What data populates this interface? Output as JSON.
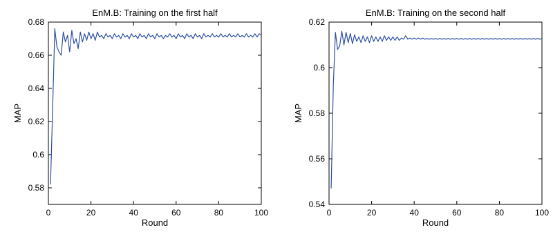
{
  "colors": {
    "series": "#2e4fa2",
    "axes": "#000000",
    "background": "#ffffff"
  },
  "chart_data": [
    {
      "type": "line",
      "title": "EnM.B: Training on the first half",
      "xlabel": "Round",
      "ylabel": "MAP",
      "xlim": [
        0,
        100
      ],
      "ylim": [
        0.57,
        0.68
      ],
      "xticks": [
        0,
        20,
        40,
        60,
        80,
        100
      ],
      "xtick_labels": [
        "0",
        "20",
        "40",
        "60",
        "80",
        "100"
      ],
      "yticks": [
        0.58,
        0.6,
        0.62,
        0.64,
        0.66,
        0.68
      ],
      "ytick_labels": [
        "0.58",
        "0.6",
        "0.62",
        "0.64",
        "0.66",
        "0.68"
      ],
      "grid": false,
      "series": [
        {
          "x": [
            1,
            2,
            3,
            4,
            5,
            6,
            7,
            8,
            9,
            10,
            11,
            12,
            13,
            14,
            15,
            16,
            17,
            18,
            19,
            20,
            21,
            22,
            23,
            24,
            25,
            26,
            27,
            28,
            29,
            30,
            31,
            32,
            33,
            34,
            35,
            36,
            37,
            38,
            39,
            40,
            41,
            42,
            43,
            44,
            45,
            46,
            47,
            48,
            49,
            50,
            51,
            52,
            53,
            54,
            55,
            56,
            57,
            58,
            59,
            60,
            61,
            62,
            63,
            64,
            65,
            66,
            67,
            68,
            69,
            70,
            71,
            72,
            73,
            74,
            75,
            76,
            77,
            78,
            79,
            80,
            81,
            82,
            83,
            84,
            85,
            86,
            87,
            88,
            89,
            90,
            91,
            92,
            93,
            94,
            95,
            96,
            97,
            98,
            99,
            100
          ],
          "y": [
            0.582,
            0.628,
            0.676,
            0.665,
            0.662,
            0.66,
            0.674,
            0.668,
            0.672,
            0.662,
            0.675,
            0.667,
            0.67,
            0.664,
            0.674,
            0.668,
            0.673,
            0.669,
            0.674,
            0.67,
            0.673,
            0.669,
            0.674,
            0.671,
            0.672,
            0.67,
            0.673,
            0.671,
            0.672,
            0.67,
            0.673,
            0.671,
            0.672,
            0.67,
            0.673,
            0.671,
            0.672,
            0.67,
            0.673,
            0.671,
            0.672,
            0.67,
            0.673,
            0.671,
            0.672,
            0.67,
            0.673,
            0.671,
            0.672,
            0.67,
            0.673,
            0.671,
            0.672,
            0.67,
            0.672,
            0.671,
            0.673,
            0.671,
            0.672,
            0.67,
            0.673,
            0.671,
            0.672,
            0.67,
            0.673,
            0.671,
            0.672,
            0.67,
            0.673,
            0.671,
            0.672,
            0.67,
            0.673,
            0.671,
            0.672,
            0.671,
            0.673,
            0.671,
            0.672,
            0.671,
            0.673,
            0.671,
            0.672,
            0.671,
            0.673,
            0.671,
            0.672,
            0.671,
            0.673,
            0.671,
            0.672,
            0.671,
            0.673,
            0.671,
            0.672,
            0.671,
            0.673,
            0.671,
            0.673,
            0.672
          ]
        }
      ]
    },
    {
      "type": "line",
      "title": "EnM.B: Training on the second half",
      "xlabel": "Round",
      "ylabel": "MAP",
      "xlim": [
        0,
        100
      ],
      "ylim": [
        0.54,
        0.62
      ],
      "xticks": [
        0,
        20,
        40,
        60,
        80,
        100
      ],
      "xtick_labels": [
        "0",
        "20",
        "40",
        "60",
        "80",
        "100"
      ],
      "yticks": [
        0.54,
        0.56,
        0.58,
        0.6,
        0.62
      ],
      "ytick_labels": [
        "0.54",
        "0.56",
        "0.58",
        "0.6",
        "0.62"
      ],
      "grid": false,
      "series": [
        {
          "x": [
            1,
            2,
            3,
            4,
            5,
            6,
            7,
            8,
            9,
            10,
            11,
            12,
            13,
            14,
            15,
            16,
            17,
            18,
            19,
            20,
            21,
            22,
            23,
            24,
            25,
            26,
            27,
            28,
            29,
            30,
            31,
            32,
            33,
            34,
            35,
            36,
            37,
            38,
            39,
            40,
            41,
            42,
            43,
            44,
            45,
            46,
            47,
            48,
            49,
            50,
            51,
            52,
            53,
            54,
            55,
            56,
            57,
            58,
            59,
            60,
            61,
            62,
            63,
            64,
            65,
            66,
            67,
            68,
            69,
            70,
            71,
            72,
            73,
            74,
            75,
            76,
            77,
            78,
            79,
            80,
            81,
            82,
            83,
            84,
            85,
            86,
            87,
            88,
            89,
            90,
            91,
            92,
            93,
            94,
            95,
            96,
            97,
            98,
            99,
            100
          ],
          "y": [
            0.547,
            0.592,
            0.6155,
            0.608,
            0.6095,
            0.616,
            0.61,
            0.6155,
            0.611,
            0.615,
            0.6105,
            0.6145,
            0.6115,
            0.6135,
            0.611,
            0.614,
            0.6115,
            0.6135,
            0.611,
            0.614,
            0.6115,
            0.6135,
            0.6115,
            0.6135,
            0.6115,
            0.614,
            0.612,
            0.6135,
            0.612,
            0.6135,
            0.612,
            0.6135,
            0.612,
            0.613,
            0.6125,
            0.614,
            0.6125,
            0.613,
            0.6125,
            0.613,
            0.6125,
            0.613,
            0.6125,
            0.613,
            0.6125,
            0.6128,
            0.6125,
            0.6128,
            0.6125,
            0.6128,
            0.6125,
            0.6128,
            0.6125,
            0.6128,
            0.6125,
            0.6128,
            0.6125,
            0.6128,
            0.6125,
            0.6128,
            0.6125,
            0.6128,
            0.6125,
            0.6128,
            0.6125,
            0.6128,
            0.6125,
            0.6128,
            0.6125,
            0.6128,
            0.6125,
            0.6128,
            0.6125,
            0.6128,
            0.6125,
            0.6128,
            0.6125,
            0.6128,
            0.6125,
            0.6128,
            0.6125,
            0.6128,
            0.6125,
            0.6128,
            0.6125,
            0.6128,
            0.6125,
            0.6128,
            0.6125,
            0.6128,
            0.6125,
            0.6128,
            0.6125,
            0.6128,
            0.6125,
            0.6128,
            0.6125,
            0.6128,
            0.6125,
            0.6128
          ]
        }
      ]
    }
  ]
}
